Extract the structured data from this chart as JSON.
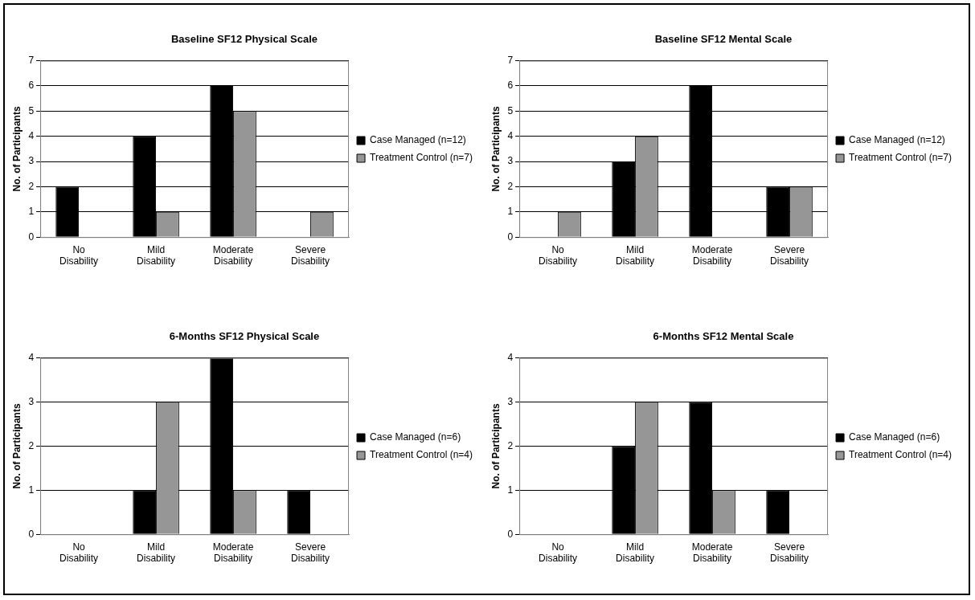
{
  "chart_data": [
    {
      "type": "bar",
      "title": "Baseline SF12 Physical Scale",
      "ylabel": "No. of Participants",
      "categories": [
        "No Disability",
        "Mild Disability",
        "Moderate Disability",
        "Severe Disability"
      ],
      "series": [
        {
          "name": "Case Managed (n=12)",
          "color": "#000000",
          "values": [
            2,
            4,
            6,
            0
          ]
        },
        {
          "name": "Treatment Control (n=7)",
          "color": "#969696",
          "values": [
            0,
            1,
            5,
            1
          ]
        }
      ],
      "ylim": [
        0,
        7
      ],
      "yticks": [
        0,
        1,
        2,
        3,
        4,
        5,
        6,
        7
      ],
      "grid": "y",
      "legend": "right"
    },
    {
      "type": "bar",
      "title": "Baseline SF12 Mental Scale",
      "ylabel": "No. of Participants",
      "categories": [
        "No Disability",
        "Mild Disability",
        "Moderate Disability",
        "Severe Disability"
      ],
      "series": [
        {
          "name": "Case Managed (n=12)",
          "color": "#000000",
          "values": [
            0,
            3,
            6,
            2
          ]
        },
        {
          "name": "Treatment Control (n=7)",
          "color": "#969696",
          "values": [
            1,
            4,
            0,
            2
          ]
        }
      ],
      "ylim": [
        0,
        7
      ],
      "yticks": [
        0,
        1,
        2,
        3,
        4,
        5,
        6,
        7
      ],
      "grid": "y",
      "legend": "right"
    },
    {
      "type": "bar",
      "title": "6-Months SF12 Physical Scale",
      "ylabel": "No. of Participants",
      "categories": [
        "No Disability",
        "Mild Disability",
        "Moderate Disability",
        "Severe Disability"
      ],
      "series": [
        {
          "name": "Case Managed (n=6)",
          "color": "#000000",
          "values": [
            0,
            1,
            4,
            1
          ]
        },
        {
          "name": "Treatment Control (n=4)",
          "color": "#969696",
          "values": [
            0,
            3,
            1,
            0
          ]
        }
      ],
      "ylim": [
        0,
        4
      ],
      "yticks": [
        0,
        1,
        2,
        3,
        4
      ],
      "grid": "y",
      "legend": "right"
    },
    {
      "type": "bar",
      "title": "6-Months SF12 Mental Scale",
      "ylabel": "No. of Participants",
      "categories": [
        "No Disability",
        "Mild Disability",
        "Moderate Disability",
        "Severe Disability"
      ],
      "series": [
        {
          "name": "Case Managed (n=6)",
          "color": "#000000",
          "values": [
            0,
            2,
            3,
            1
          ]
        },
        {
          "name": "Treatment Control (n=4)",
          "color": "#969696",
          "values": [
            0,
            3,
            1,
            0
          ]
        }
      ],
      "ylim": [
        0,
        4
      ],
      "yticks": [
        0,
        1,
        2,
        3,
        4
      ],
      "grid": "y",
      "legend": "right"
    }
  ]
}
